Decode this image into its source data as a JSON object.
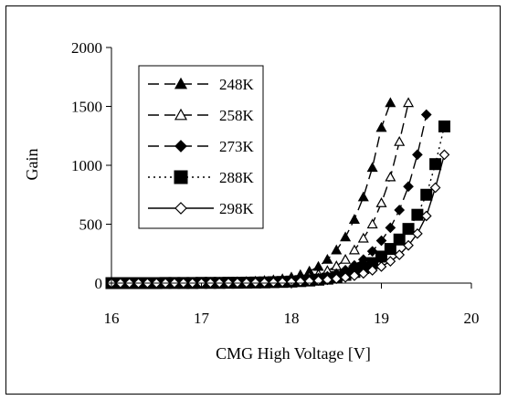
{
  "chart_data": {
    "type": "line",
    "title": "",
    "xlabel": "CMG High Voltage [V]",
    "ylabel": "Gain",
    "xlim": [
      16,
      20
    ],
    "ylim": [
      0,
      2000
    ],
    "x_ticks": [
      "16",
      "17",
      "18",
      "19",
      "20"
    ],
    "y_ticks": [
      "0",
      "500",
      "1000",
      "1500",
      "2000"
    ],
    "y_tick_values": [
      0,
      500,
      1000,
      1500,
      2000
    ],
    "x_tick_values": [
      16,
      17,
      18,
      19,
      20
    ],
    "grid": false,
    "legend_placement": "top-left",
    "series": [
      {
        "name": "248K",
        "marker": "filled-triangle",
        "dash": "long-dash",
        "x": [
          16.0,
          16.1,
          16.2,
          16.3,
          16.4,
          16.5,
          16.6,
          16.7,
          16.8,
          16.9,
          17.0,
          17.1,
          17.2,
          17.3,
          17.4,
          17.5,
          17.6,
          17.7,
          17.8,
          17.9,
          18.0,
          18.1,
          18.2,
          18.3,
          18.4,
          18.5,
          18.6,
          18.7,
          18.8,
          18.9,
          19.0,
          19.1
        ],
        "y": [
          0,
          0,
          0,
          1,
          1,
          1,
          1,
          2,
          2,
          3,
          4,
          5,
          6,
          8,
          10,
          12,
          15,
          20,
          26,
          35,
          50,
          70,
          100,
          140,
          200,
          280,
          390,
          540,
          730,
          980,
          1320,
          1530
        ]
      },
      {
        "name": "258K",
        "marker": "open-triangle",
        "dash": "long-dash",
        "x": [
          16.0,
          16.1,
          16.2,
          16.3,
          16.4,
          16.5,
          16.6,
          16.7,
          16.8,
          16.9,
          17.0,
          17.1,
          17.2,
          17.3,
          17.4,
          17.5,
          17.6,
          17.7,
          17.8,
          17.9,
          18.0,
          18.1,
          18.2,
          18.3,
          18.4,
          18.5,
          18.6,
          18.7,
          18.8,
          18.9,
          19.0,
          19.1,
          19.2,
          19.3
        ],
        "y": [
          0,
          0,
          0,
          0,
          1,
          1,
          1,
          1,
          2,
          2,
          3,
          3,
          4,
          5,
          6,
          8,
          10,
          13,
          17,
          22,
          30,
          40,
          55,
          75,
          105,
          145,
          200,
          280,
          380,
          500,
          680,
          900,
          1200,
          1530
        ]
      },
      {
        "name": "273K",
        "marker": "filled-diamond",
        "dash": "long-dash",
        "x": [
          16.0,
          16.1,
          16.2,
          16.3,
          16.4,
          16.5,
          16.6,
          16.7,
          16.8,
          16.9,
          17.0,
          17.1,
          17.2,
          17.3,
          17.4,
          17.5,
          17.6,
          17.7,
          17.8,
          17.9,
          18.0,
          18.1,
          18.2,
          18.3,
          18.4,
          18.5,
          18.6,
          18.7,
          18.8,
          18.9,
          19.0,
          19.1,
          19.2,
          19.3,
          19.4,
          19.5
        ],
        "y": [
          0,
          0,
          0,
          0,
          0,
          1,
          1,
          1,
          1,
          2,
          2,
          3,
          3,
          4,
          5,
          6,
          7,
          9,
          11,
          14,
          18,
          24,
          32,
          43,
          58,
          80,
          110,
          150,
          200,
          270,
          360,
          470,
          620,
          820,
          1090,
          1430
        ]
      },
      {
        "name": "288K",
        "marker": "filled-square",
        "dash": "dotted",
        "x": [
          16.0,
          16.1,
          16.2,
          16.3,
          16.4,
          16.5,
          16.6,
          16.7,
          16.8,
          16.9,
          17.0,
          17.1,
          17.2,
          17.3,
          17.4,
          17.5,
          17.6,
          17.7,
          17.8,
          17.9,
          18.0,
          18.1,
          18.2,
          18.3,
          18.4,
          18.5,
          18.6,
          18.7,
          18.8,
          18.9,
          19.0,
          19.1,
          19.2,
          19.3,
          19.4,
          19.5,
          19.6,
          19.7
        ],
        "y": [
          0,
          0,
          0,
          0,
          0,
          0,
          1,
          1,
          1,
          1,
          2,
          2,
          2,
          3,
          3,
          4,
          5,
          6,
          8,
          10,
          13,
          17,
          22,
          29,
          38,
          52,
          70,
          95,
          128,
          170,
          225,
          290,
          370,
          460,
          580,
          750,
          1010,
          1330
        ]
      },
      {
        "name": "298K",
        "marker": "open-diamond",
        "dash": "solid",
        "x": [
          16.0,
          16.1,
          16.2,
          16.3,
          16.4,
          16.5,
          16.6,
          16.7,
          16.8,
          16.9,
          17.0,
          17.1,
          17.2,
          17.3,
          17.4,
          17.5,
          17.6,
          17.7,
          17.8,
          17.9,
          18.0,
          18.1,
          18.2,
          18.3,
          18.4,
          18.5,
          18.6,
          18.7,
          18.8,
          18.9,
          19.0,
          19.1,
          19.2,
          19.3,
          19.4,
          19.5,
          19.6,
          19.7
        ],
        "y": [
          0,
          0,
          0,
          0,
          0,
          0,
          0,
          1,
          1,
          1,
          1,
          2,
          2,
          2,
          3,
          3,
          4,
          5,
          6,
          8,
          10,
          13,
          17,
          22,
          28,
          37,
          48,
          63,
          82,
          108,
          140,
          185,
          240,
          320,
          420,
          570,
          810,
          1090
        ]
      }
    ]
  }
}
